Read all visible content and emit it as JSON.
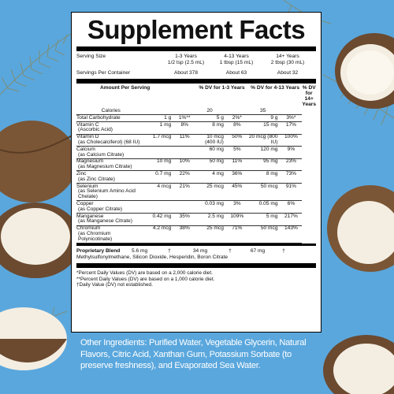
{
  "title": "Supplement Facts",
  "serving": {
    "size_label": "Serving Size",
    "containers_label": "Servings Per Container",
    "groups": [
      {
        "age": "1-3 Years",
        "size": "1/2 tsp (2.5 mL)",
        "count": "About 378"
      },
      {
        "age": "4-13 Years",
        "size": "1 tbsp (15 mL)",
        "count": "About 63"
      },
      {
        "age": "14+ Years",
        "size": "2 tbsp (30 mL)",
        "count": "About 32"
      }
    ]
  },
  "header": {
    "amount": "Amount Per Serving",
    "dv1": "% DV for 1-3 Years",
    "dv2": "% DV for 4-13 Years",
    "dv3": "% DV for 14+ Years"
  },
  "nutrients": [
    {
      "name": "Calories",
      "sub": "",
      "a1": "",
      "d1": "",
      "a2": "20",
      "d2": "",
      "a3": "35",
      "d3": ""
    },
    {
      "name": "Total Carbohydrate",
      "sub": "",
      "a1": "1 g",
      "d1": "1%**",
      "a2": "5 g",
      "d2": "2%*",
      "a3": "9 g",
      "d3": "3%*"
    },
    {
      "name": "Vitamin C",
      "sub": "(Ascorbic Acid)",
      "a1": "1 mg",
      "d1": "8%",
      "a2": "8 mg",
      "d2": "8%",
      "a3": "15 mg",
      "d3": "17%"
    },
    {
      "name": "Vitamin D",
      "sub": "(as Cholecalciferol) (68 IU)",
      "a1": "1.7 mcg",
      "d1": "11%",
      "a2": "10 mcg (400 IU)",
      "d2": "50%",
      "a3": "20 mcg (800 IU)",
      "d3": "100%"
    },
    {
      "name": "Calcium",
      "sub": "(as Calcium Citrate)",
      "a1": "",
      "d1": "",
      "a2": "60 mg",
      "d2": "5%",
      "a3": "120 mg",
      "d3": "9%"
    },
    {
      "name": "Magnesium",
      "sub": "(as Magnesium Citrate)",
      "a1": "10 mg",
      "d1": "10%",
      "a2": "50 mg",
      "d2": "11%",
      "a3": "95 mg",
      "d3": "23%"
    },
    {
      "name": "Zinc",
      "sub": "(as Zinc Citrate)",
      "a1": "0.7 mg",
      "d1": "22%",
      "a2": "4 mg",
      "d2": "36%",
      "a3": "8 mg",
      "d3": "73%"
    },
    {
      "name": "Selenium",
      "sub": "(as Selenium Amino Acid Chelate)",
      "a1": "4 mcg",
      "d1": "21%",
      "a2": "25 mcg",
      "d2": "45%",
      "a3": "50 mcg",
      "d3": "91%"
    },
    {
      "name": "Copper",
      "sub": "(as Copper Citrate)",
      "a1": "",
      "d1": "",
      "a2": "0.03 mg",
      "d2": "3%",
      "a3": "0.05 mg",
      "d3": "6%"
    },
    {
      "name": "Manganese",
      "sub": "(as Manganese Citrate)",
      "a1": "0.42 mg",
      "d1": "35%",
      "a2": "2.5 mg",
      "d2": "109%",
      "a3": "5 mg",
      "d3": "217%"
    },
    {
      "name": "Chromium",
      "sub": "(as Chromium Polynicotinate)",
      "a1": "4.2 mcg",
      "d1": "38%",
      "a2": "25 mcg",
      "d2": "71%",
      "a3": "50 mcg",
      "d3": "143%"
    }
  ],
  "blend": {
    "label": "Proprietary Blend",
    "a1": "5.6 mg",
    "d1": "†",
    "a2": "34 mg",
    "d2": "†",
    "a3": "67 mg",
    "d3": "†",
    "ingredients": "Methylsulfonylmethane, Silicon Dioxide, Hesperidin, Boron Citrate"
  },
  "footnotes": [
    "*Percent Daily Values (DV) are based on a 2,000 calorie diet.",
    "**Percent Daily Values (DV) are based on a 1,000 calorie diet.",
    "†Daily Value (DV) not established."
  ],
  "other_ingredients": "Other Ingredients: Purified Water, Vegetable Glycerin, Natural Flavors, Citric Acid, Xanthan Gum, Potassium Sorbate (to preserve freshness), and Evaporated Sea Water.",
  "colors": {
    "background": "#5aa7dd",
    "coconut_shell": "#6b4a30",
    "coconut_flesh": "#f4eee2",
    "leaf": "#8c9a86"
  }
}
